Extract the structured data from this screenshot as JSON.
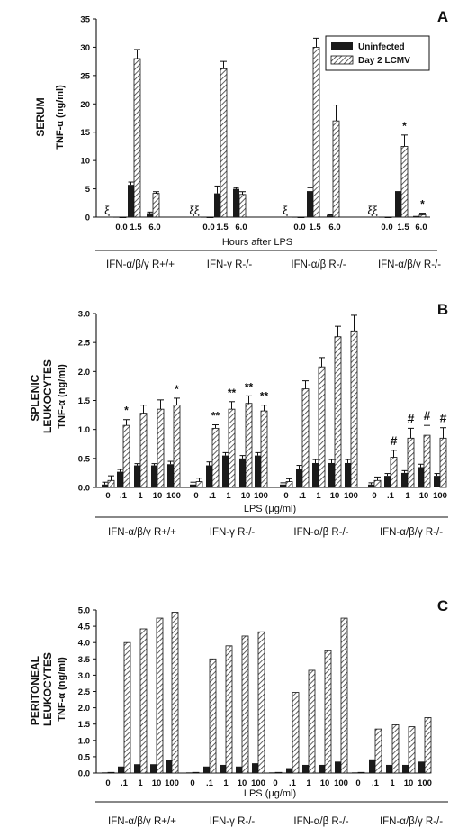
{
  "figure": {
    "legend": {
      "uninfected": "Uninfected",
      "infected": "Day 2 LCMV",
      "placement": "top-right"
    },
    "colors": {
      "uninfected": "#1a1a1a",
      "infected_hatch": "#555555",
      "axis": "#111111"
    }
  },
  "chart_data": [
    {
      "type": "bar",
      "panel": "A",
      "ylabel": "SERUM",
      "yunit": "TNF-α (ng/ml)",
      "xlabel": "Hours after LPS",
      "ylim": [
        0,
        35
      ],
      "yticks": [
        "0",
        "5",
        "10",
        "15",
        "20",
        "25",
        "30",
        "35"
      ],
      "grid": false,
      "groups": [
        {
          "label": "IFN-α/β/γ R+/+",
          "x": [
            "0.0",
            "1.5",
            "6.0"
          ],
          "uninfected": [
            0,
            5.7,
            0.7
          ],
          "uninfected_err": [
            0,
            0.5,
            0.2
          ],
          "infected": [
            0,
            28.0,
            4.2
          ],
          "infected_err": [
            0,
            1.6,
            0.3
          ],
          "marks": [
            {
              "i": 0,
              "text": "ξ"
            }
          ]
        },
        {
          "label": "IFN-γ R-/-",
          "x": [
            "0.0",
            "1.5",
            "6.0"
          ],
          "uninfected": [
            0,
            4.2,
            5.0
          ],
          "uninfected_err": [
            0,
            1.3,
            0.2
          ],
          "infected": [
            0,
            26.2,
            4.0
          ],
          "infected_err": [
            0,
            1.3,
            0.5
          ],
          "marks": [
            {
              "i": 0,
              "text": "ξξ"
            }
          ]
        },
        {
          "label": "IFN-α/β R-/-",
          "x": [
            "0.0",
            "1.5",
            "6.0"
          ],
          "uninfected": [
            0,
            4.6,
            0.3
          ],
          "uninfected_err": [
            0,
            0.6,
            0.1
          ],
          "infected": [
            0,
            30.0,
            17.0
          ],
          "infected_err": [
            0,
            1.6,
            2.8
          ],
          "marks": [
            {
              "i": 0,
              "text": "ξ"
            }
          ]
        },
        {
          "label": "IFN-α/β/γ R-/-",
          "x": [
            "0.0",
            "1.5",
            "6.0"
          ],
          "uninfected": [
            0,
            4.6,
            0.2
          ],
          "uninfected_err": [
            0,
            0,
            0
          ],
          "infected": [
            0,
            12.5,
            0.4
          ],
          "infected_err": [
            0,
            2.0,
            0.3
          ],
          "marks": [
            {
              "i": 0,
              "text": "ξξ"
            },
            {
              "i": 1,
              "text": "*"
            },
            {
              "i": 2,
              "text": "*"
            }
          ]
        }
      ]
    },
    {
      "type": "bar",
      "panel": "B",
      "ylabel": "SPLENIC LEUKOCYTES",
      "yunit": "TNF-α (ng/ml)",
      "xlabel": "LPS (μg/ml)",
      "ylim": [
        0,
        3.0
      ],
      "yticks": [
        "0.0",
        "0.5",
        "1.0",
        "1.5",
        "2.0",
        "2.5",
        "3.0"
      ],
      "grid": false,
      "groups": [
        {
          "label": "IFN-α/β/γ R+/+",
          "x": [
            "0",
            ".1",
            "1",
            "10",
            "100"
          ],
          "uninfected": [
            0.05,
            0.27,
            0.38,
            0.38,
            0.4
          ],
          "uninfected_err": [
            0.04,
            0.04,
            0.03,
            0.03,
            0.05
          ],
          "infected": [
            0.12,
            1.07,
            1.28,
            1.35,
            1.42
          ],
          "infected_err": [
            0.08,
            0.1,
            0.14,
            0.16,
            0.12
          ],
          "marks": [
            {
              "i": 1,
              "text": "*"
            },
            {
              "i": 4,
              "text": "*"
            }
          ]
        },
        {
          "label": "IFN-γ R-/-",
          "x": [
            "0",
            ".1",
            "1",
            "10",
            "100"
          ],
          "uninfected": [
            0.05,
            0.38,
            0.55,
            0.5,
            0.55
          ],
          "uninfected_err": [
            0.04,
            0.06,
            0.05,
            0.05,
            0.05
          ],
          "infected": [
            0.1,
            1.02,
            1.35,
            1.45,
            1.32
          ],
          "infected_err": [
            0.06,
            0.06,
            0.13,
            0.13,
            0.1
          ],
          "marks": [
            {
              "i": 1,
              "text": "**"
            },
            {
              "i": 2,
              "text": "**"
            },
            {
              "i": 3,
              "text": "**"
            },
            {
              "i": 4,
              "text": "**"
            }
          ]
        },
        {
          "label": "IFN-α/β R-/-",
          "x": [
            "0",
            ".1",
            "1",
            "10",
            "100"
          ],
          "uninfected": [
            0.05,
            0.32,
            0.42,
            0.42,
            0.42
          ],
          "uninfected_err": [
            0.03,
            0.06,
            0.06,
            0.06,
            0.06
          ],
          "infected": [
            0.1,
            1.7,
            2.08,
            2.6,
            2.7
          ],
          "infected_err": [
            0.05,
            0.14,
            0.16,
            0.18,
            0.27
          ],
          "marks": []
        },
        {
          "label": "IFN-α/β/γ R-/-",
          "x": [
            "0",
            ".1",
            "1",
            "10",
            "100"
          ],
          "uninfected": [
            0.05,
            0.2,
            0.25,
            0.35,
            0.2
          ],
          "uninfected_err": [
            0.03,
            0.04,
            0.04,
            0.05,
            0.04
          ],
          "infected": [
            0.12,
            0.52,
            0.85,
            0.9,
            0.85
          ],
          "infected_err": [
            0.06,
            0.12,
            0.17,
            0.17,
            0.18
          ],
          "marks": [
            {
              "i": 1,
              "text": "#"
            },
            {
              "i": 2,
              "text": "#"
            },
            {
              "i": 3,
              "text": "#"
            },
            {
              "i": 4,
              "text": "#"
            }
          ]
        }
      ]
    },
    {
      "type": "bar",
      "panel": "C",
      "ylabel": "PERITONEAL LEUKOCYTES",
      "yunit": "TNF-α (ng/ml)",
      "xlabel": "LPS (μg/ml)",
      "ylim": [
        0,
        5.0
      ],
      "yticks": [
        "0.0",
        "0.5",
        "1.0",
        "1.5",
        "2.0",
        "2.5",
        "3.0",
        "3.5",
        "4.0",
        "4.5",
        "5.0"
      ],
      "grid": false,
      "groups": [
        {
          "label": "IFN-α/β/γ R+/+",
          "x": [
            "0",
            ".1",
            "1",
            "10",
            "100"
          ],
          "uninfected": [
            0.02,
            0.2,
            0.27,
            0.27,
            0.4
          ],
          "infected": [
            0.02,
            4.0,
            4.42,
            4.75,
            4.93
          ],
          "marks": []
        },
        {
          "label": "IFN-γ R-/-",
          "x": [
            "0",
            ".1",
            "1",
            "10",
            "100"
          ],
          "uninfected": [
            0.02,
            0.2,
            0.25,
            0.2,
            0.3
          ],
          "infected": [
            0.02,
            3.5,
            3.9,
            4.2,
            4.33
          ],
          "marks": []
        },
        {
          "label": "IFN-α/β R-/-",
          "x": [
            "0",
            ".1",
            "1",
            "10",
            "100"
          ],
          "uninfected": [
            0.02,
            0.15,
            0.25,
            0.25,
            0.35
          ],
          "infected": [
            0.02,
            2.47,
            3.15,
            3.75,
            4.75
          ],
          "marks": []
        },
        {
          "label": "IFN-α/β/γ R-/-",
          "x": [
            "0",
            ".1",
            "1",
            "10",
            "100"
          ],
          "uninfected": [
            0.02,
            0.42,
            0.25,
            0.25,
            0.35
          ],
          "infected": [
            0.02,
            1.35,
            1.48,
            1.42,
            1.7
          ],
          "marks": []
        }
      ]
    }
  ]
}
